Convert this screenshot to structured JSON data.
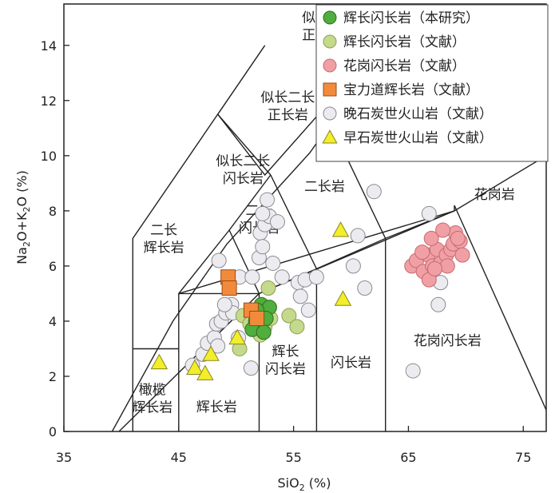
{
  "chart_data": {
    "type": "scatter",
    "subtype": "TAS classification diagram",
    "xlabel_main": "SiO",
    "xlabel_sub": "2",
    "xlabel_unit": " (%)",
    "ylabel_parts": [
      "Na",
      "2",
      "O+K",
      "2",
      "O (%)"
    ],
    "xlim": [
      35,
      77
    ],
    "ylim": [
      0,
      15.5
    ],
    "xticks": [
      35,
      45,
      55,
      65,
      75
    ],
    "yticks": [
      0,
      2,
      4,
      6,
      8,
      10,
      12,
      14
    ],
    "boundaries": [
      [
        [
          41,
          0
        ],
        [
          41,
          3
        ],
        [
          45,
          3
        ],
        [
          45,
          0
        ]
      ],
      [
        [
          41,
          3
        ],
        [
          41,
          7
        ],
        [
          52.5,
          14
        ],
        [
          48.4,
          11.5
        ],
        [
          52.5,
          9.3
        ],
        [
          57.6,
          11.7
        ],
        [
          61,
          15.5
        ]
      ],
      [
        [
          45,
          3
        ],
        [
          45,
          5
        ],
        [
          49.4,
          7.3
        ],
        [
          53,
          9.3
        ]
      ],
      [
        [
          45,
          5
        ],
        [
          52,
          5
        ],
        [
          52,
          0
        ]
      ],
      [
        [
          52,
          5
        ],
        [
          57,
          5.9
        ],
        [
          57,
          0
        ]
      ],
      [
        [
          57,
          5.9
        ],
        [
          63,
          7
        ],
        [
          63,
          0
        ]
      ],
      [
        [
          63,
          7
        ],
        [
          69,
          8
        ],
        [
          69,
          8.2
        ],
        [
          77.3,
          0.5
        ]
      ],
      [
        [
          49.4,
          7.3
        ],
        [
          52,
          5
        ]
      ],
      [
        [
          53,
          9.3
        ],
        [
          57,
          5.9
        ]
      ],
      [
        [
          48.4,
          11.5
        ],
        [
          53,
          9.3
        ]
      ],
      [
        [
          57.6,
          11.7
        ],
        [
          63,
          7
        ]
      ],
      [
        [
          39.2,
          0
        ],
        [
          44.5,
          4
        ],
        [
          49.2,
          6.8
        ],
        [
          56.4,
          10.1
        ],
        [
          62.2,
          13.5
        ]
      ],
      [
        [
          52,
          5
        ],
        [
          69,
          8
        ]
      ],
      [
        [
          45,
          5
        ],
        [
          69,
          8
        ]
      ],
      [
        [
          39.8,
          0
        ],
        [
          52,
          5
        ]
      ],
      [
        [
          69,
          8
        ],
        [
          77,
          10
        ]
      ]
    ],
    "field_labels": [
      {
        "lines": [
          "似长石",
          "正长岩"
        ],
        "x": 57.5,
        "y": 14.7
      },
      {
        "lines": [
          "似长二长",
          "正长岩"
        ],
        "x": 54.5,
        "y": 11.8
      },
      {
        "lines": [
          "似长二长",
          "闪长岩"
        ],
        "x": 50.6,
        "y": 9.5
      },
      {
        "lines": [
          "二长岩"
        ],
        "x": 57.7,
        "y": 8.9
      },
      {
        "lines": [
          "二长",
          "辉长岩"
        ],
        "x": 43.7,
        "y": 7.0
      },
      {
        "lines": [
          "二长",
          "闪长岩"
        ],
        "x": 52.0,
        "y": 7.7
      },
      {
        "lines": [
          "花岗岩"
        ],
        "x": 72.5,
        "y": 8.6
      },
      {
        "lines": [
          "花岗闪长岩"
        ],
        "x": 68.4,
        "y": 3.3
      },
      {
        "lines": [
          "闪长岩"
        ],
        "x": 60.0,
        "y": 2.5
      },
      {
        "lines": [
          "辉长",
          "闪长岩"
        ],
        "x": 54.3,
        "y": 2.6
      },
      {
        "lines": [
          "辉长岩"
        ],
        "x": 48.3,
        "y": 0.9
      },
      {
        "lines": [
          "橄榄",
          "辉长岩"
        ],
        "x": 42.7,
        "y": 1.2
      }
    ],
    "series": [
      {
        "name": "辉长闪长岩（本研究）",
        "marker": "circle",
        "fill": "#4fae3c",
        "stroke": "#2f6b21",
        "points": [
          [
            52.2,
            4.6
          ],
          [
            52.9,
            4.5
          ],
          [
            51.7,
            4.0
          ],
          [
            52.6,
            4.1
          ],
          [
            51.4,
            3.7
          ],
          [
            52.4,
            3.6
          ],
          [
            51.8,
            4.4
          ]
        ]
      },
      {
        "name": "辉长闪长岩（文献）",
        "marker": "circle",
        "fill": "#c5d98c",
        "stroke": "#8aa050",
        "points": [
          [
            50.6,
            4.2
          ],
          [
            51.2,
            3.9
          ],
          [
            50.3,
            3.0
          ],
          [
            52.8,
            5.2
          ],
          [
            52.1,
            3.5
          ],
          [
            52.5,
            3.8
          ],
          [
            53.0,
            4.1
          ],
          [
            54.6,
            4.2
          ],
          [
            55.3,
            3.8
          ],
          [
            51.6,
            4.3
          ]
        ]
      },
      {
        "name": "花岗闪长岩（文献）",
        "marker": "circle",
        "fill": "#f0a0a4",
        "stroke": "#c66a70",
        "points": [
          [
            65.3,
            6.0
          ],
          [
            65.7,
            6.2
          ],
          [
            66.3,
            5.8
          ],
          [
            66.7,
            6.4
          ],
          [
            67.1,
            6.0
          ],
          [
            67.5,
            6.6
          ],
          [
            67.8,
            6.1
          ],
          [
            68.3,
            6.4
          ],
          [
            68.7,
            6.6
          ],
          [
            68.9,
            6.8
          ],
          [
            69.1,
            7.2
          ],
          [
            69.5,
            6.9
          ],
          [
            69.7,
            6.4
          ],
          [
            67.0,
            7.0
          ],
          [
            68.0,
            7.3
          ],
          [
            66.8,
            5.5
          ],
          [
            68.4,
            6.0
          ],
          [
            69.3,
            7.0
          ],
          [
            66.2,
            6.5
          ],
          [
            67.3,
            5.9
          ]
        ]
      },
      {
        "name": "宝力道辉长岩（文献）",
        "marker": "square",
        "fill": "#f28a3c",
        "stroke": "#9c4b12",
        "points": [
          [
            49.3,
            5.6
          ],
          [
            49.4,
            5.2
          ],
          [
            51.3,
            4.4
          ],
          [
            51.8,
            4.1
          ]
        ]
      },
      {
        "name": "晚石炭世火山岩（文献）",
        "marker": "circle",
        "fill": "#ececf0",
        "stroke": "#8a8a90",
        "points": [
          [
            46.2,
            2.4
          ],
          [
            47.1,
            2.8
          ],
          [
            47.5,
            3.2
          ],
          [
            48.1,
            3.4
          ],
          [
            48.4,
            3.1
          ],
          [
            48.3,
            3.9
          ],
          [
            48.7,
            4.0
          ],
          [
            49.1,
            4.3
          ],
          [
            49.6,
            4.6
          ],
          [
            49.7,
            4.3
          ],
          [
            50.3,
            5.6
          ],
          [
            49.0,
            4.6
          ],
          [
            48.5,
            6.2
          ],
          [
            51.4,
            5.6
          ],
          [
            52.0,
            6.3
          ],
          [
            52.1,
            7.2
          ],
          [
            52.3,
            6.7
          ],
          [
            52.5,
            7.5
          ],
          [
            52.9,
            7.8
          ],
          [
            53.2,
            6.1
          ],
          [
            54.0,
            5.6
          ],
          [
            55.4,
            5.4
          ],
          [
            56.0,
            5.5
          ],
          [
            57.0,
            5.6
          ],
          [
            55.6,
            4.9
          ],
          [
            56.3,
            4.4
          ],
          [
            60.2,
            6.0
          ],
          [
            60.6,
            7.1
          ],
          [
            61.2,
            5.2
          ],
          [
            62.0,
            8.7
          ],
          [
            66.8,
            7.9
          ],
          [
            67.3,
            5.9
          ],
          [
            67.8,
            5.4
          ],
          [
            67.6,
            4.6
          ],
          [
            65.4,
            2.2
          ],
          [
            50.2,
            3.4
          ],
          [
            51.3,
            2.3
          ],
          [
            52.3,
            7.9
          ],
          [
            52.7,
            8.4
          ],
          [
            53.6,
            7.6
          ]
        ]
      },
      {
        "name": "早石炭世火山岩（文献）",
        "marker": "triangle",
        "fill": "#f3ee2b",
        "stroke": "#8a8520",
        "points": [
          [
            43.3,
            2.5
          ],
          [
            46.4,
            2.3
          ],
          [
            47.3,
            2.1
          ],
          [
            47.8,
            2.8
          ],
          [
            50.1,
            3.4
          ],
          [
            59.1,
            7.3
          ],
          [
            59.3,
            4.8
          ]
        ]
      }
    ],
    "legend_position": "top-right"
  }
}
